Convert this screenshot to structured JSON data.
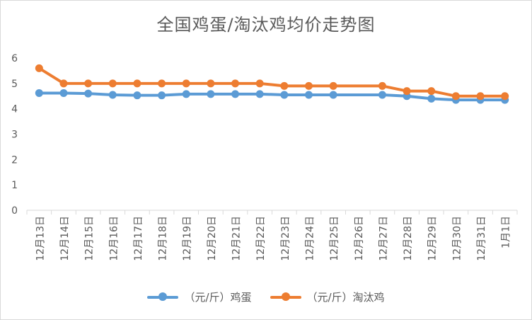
{
  "chart_data": {
    "type": "line",
    "title": "全国鸡蛋/淘汰鸡均价走势图",
    "xlabel": "",
    "ylabel": "",
    "ylim": [
      0,
      6
    ],
    "yticks": [
      0,
      1,
      2,
      3,
      4,
      5,
      6
    ],
    "grid": false,
    "legend_position": "bottom",
    "categories": [
      "12月13日",
      "12月14日",
      "12月15日",
      "12月16日",
      "12月17日",
      "12月18日",
      "12月19日",
      "12月20日",
      "12月21日",
      "12月22日",
      "12月23日",
      "12月24日",
      "12月25日",
      "12月26日",
      "12月27日",
      "12月28日",
      "12月29日",
      "12月30日",
      "12月31日",
      "1月1日"
    ],
    "series": [
      {
        "name": "（元/斤）鸡蛋",
        "color": "#5b9bd5",
        "values": [
          4.62,
          4.62,
          4.6,
          4.55,
          4.53,
          4.53,
          4.58,
          4.58,
          4.58,
          4.58,
          4.55,
          4.55,
          4.55,
          null,
          4.55,
          4.5,
          4.4,
          4.35,
          4.35,
          4.35
        ]
      },
      {
        "name": "（元/斤）淘汰鸡",
        "color": "#ed7d31",
        "values": [
          5.6,
          5.0,
          5.0,
          5.0,
          5.0,
          5.0,
          5.0,
          5.0,
          5.0,
          5.0,
          4.9,
          4.9,
          4.9,
          null,
          4.9,
          4.7,
          4.7,
          4.5,
          4.5,
          4.5
        ]
      }
    ]
  }
}
